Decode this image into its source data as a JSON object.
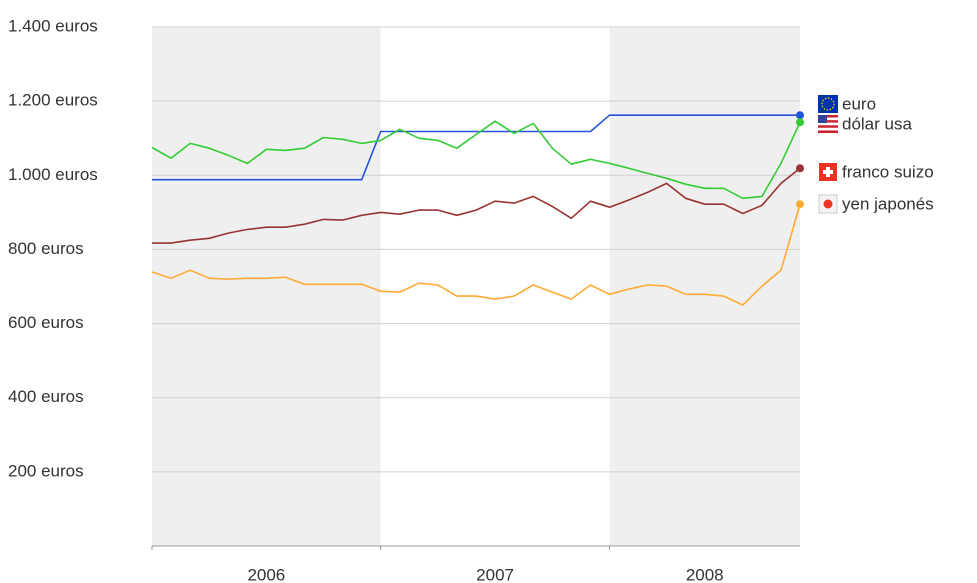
{
  "chart_data": {
    "type": "line",
    "x": [
      2006,
      2006.083,
      2006.167,
      2006.25,
      2006.333,
      2006.417,
      2006.5,
      2006.583,
      2006.667,
      2006.75,
      2006.833,
      2006.917,
      2007,
      2007.083,
      2007.167,
      2007.25,
      2007.333,
      2007.417,
      2007.5,
      2007.583,
      2007.667,
      2007.75,
      2007.833,
      2007.917,
      2008,
      2008.083,
      2008.167,
      2008.25,
      2008.333,
      2008.417,
      2008.5,
      2008.583,
      2008.667,
      2008.75,
      2008.833
    ],
    "series": [
      {
        "name": "euro",
        "color": "#2255dd",
        "values": [
          988,
          988,
          988,
          988,
          988,
          988,
          988,
          988,
          988,
          988,
          988,
          988,
          1118,
          1118,
          1118,
          1118,
          1118,
          1118,
          1118,
          1118,
          1118,
          1118,
          1118,
          1118,
          1162,
          1162,
          1162,
          1162,
          1162,
          1162,
          1162,
          1162,
          1162,
          1162,
          1162
        ]
      },
      {
        "name": "dólar usa",
        "color": "#33cc33",
        "values": [
          1075,
          1046,
          1086,
          1073,
          1054,
          1032,
          1070,
          1067,
          1073,
          1102,
          1097,
          1086,
          1094,
          1124,
          1100,
          1094,
          1073,
          1110,
          1146,
          1113,
          1140,
          1073,
          1030,
          1043,
          1032,
          1019,
          1005,
          992,
          976,
          965,
          965,
          938,
          943,
          1032,
          1143
        ]
      },
      {
        "name": "franco suizo",
        "color": "#993333",
        "values": [
          817,
          817,
          825,
          830,
          844,
          854,
          860,
          860,
          868,
          881,
          879,
          892,
          900,
          895,
          906,
          906,
          892,
          906,
          930,
          925,
          943,
          916,
          884,
          930,
          914,
          933,
          954,
          978,
          938,
          922,
          922,
          897,
          919,
          978,
          1019
        ]
      },
      {
        "name": "yen japonés",
        "color": "#ffaa33",
        "values": [
          739,
          722,
          744,
          722,
          720,
          722,
          722,
          725,
          706,
          706,
          706,
          706,
          687,
          685,
          709,
          704,
          674,
          674,
          666,
          674,
          704,
          685,
          666,
          704,
          679,
          693,
          704,
          701,
          679,
          679,
          674,
          650,
          701,
          744,
          922
        ]
      }
    ],
    "xlim": [
      2006,
      2008.833
    ],
    "xticks": [
      2006,
      2007,
      2008
    ],
    "ylim": [
      0,
      1400
    ],
    "yticks": [
      {
        "value": 200,
        "label": "200 euros"
      },
      {
        "value": 400,
        "label": "400 euros"
      },
      {
        "value": 600,
        "label": "600 euros"
      },
      {
        "value": 800,
        "label": "800 euros"
      },
      {
        "value": 1000,
        "label": "1.000 euros"
      },
      {
        "value": 1200,
        "label": "1.200 euros"
      },
      {
        "value": 1400,
        "label": "1.400 euros"
      }
    ],
    "grid": true
  }
}
